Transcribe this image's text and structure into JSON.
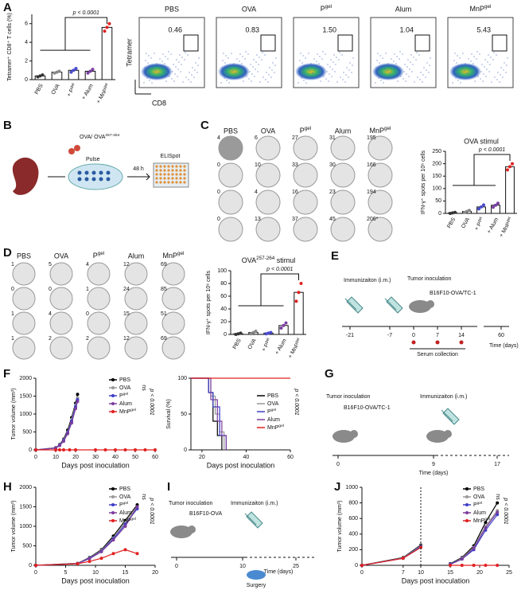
{
  "panel_labels": [
    "A",
    "B",
    "C",
    "D",
    "E",
    "F",
    "G",
    "H",
    "I",
    "J"
  ],
  "chart_data": [
    {
      "type": "bar",
      "ylabel": "Tetramer⁺ CD8⁺ T cells (%)",
      "categories": [
        "PBS",
        "OVA",
        {
          "text": "+ P",
          "sup": "gel"
        },
        "+ Alum",
        {
          "text": "+ MnP",
          "sup": "gel"
        }
      ],
      "values": [
        0.4,
        0.8,
        1.0,
        0.9,
        5.6
      ],
      "points": [
        [
          0.3,
          0.4,
          0.5
        ],
        [
          0.7,
          0.8,
          0.9
        ],
        [
          0.8,
          1.0,
          1.2
        ],
        [
          0.7,
          0.9,
          1.1
        ],
        [
          5.2,
          5.6,
          6.0
        ]
      ],
      "colors": [
        "#333333",
        "#888888",
        "#4a4ad0",
        "#7b3fa0",
        "#e02020"
      ],
      "ylim": [
        0,
        7
      ],
      "yticks": [
        0,
        2,
        4,
        6
      ],
      "annotation": "p < 0.0001"
    },
    {
      "type": "bar",
      "title": "OVA stimul",
      "ylabel": "IFN-γ⁺ spots per 10⁶ cells",
      "categories": [
        "PBS",
        "OVA",
        {
          "text": "+ P",
          "sup": "gel"
        },
        "+ Alum",
        {
          "text": "+ MnP",
          "sup": "gel"
        }
      ],
      "values": [
        2,
        8,
        26,
        33,
        188
      ],
      "points": [
        [
          0,
          2,
          4
        ],
        [
          4,
          8,
          12
        ],
        [
          18,
          26,
          34
        ],
        [
          25,
          33,
          41
        ],
        [
          175,
          188,
          200
        ]
      ],
      "colors": [
        "#333333",
        "#888888",
        "#4a4ad0",
        "#7b3fa0",
        "#e02020"
      ],
      "ylim": [
        0,
        250
      ],
      "yticks": [
        0,
        50,
        100,
        150,
        200,
        250
      ],
      "annotation": "p < 0.0001"
    },
    {
      "type": "bar",
      "title": {
        "text": "OVA",
        "sup": "257-264",
        "after": " stimul"
      },
      "ylabel": "IFN-γ⁺ spots per 10⁶ cells",
      "categories": [
        "PBS",
        "OVA",
        {
          "text": "+ P",
          "sup": "gel"
        },
        "+ Alum",
        {
          "text": "+ MnP",
          "sup": "gel"
        }
      ],
      "values": [
        1,
        3,
        2,
        14,
        66
      ],
      "points": [
        [
          0,
          1,
          2
        ],
        [
          1,
          3,
          5
        ],
        [
          1,
          2,
          3
        ],
        [
          10,
          14,
          18
        ],
        [
          52,
          66,
          80
        ]
      ],
      "colors": [
        "#333333",
        "#888888",
        "#4a4ad0",
        "#7b3fa0",
        "#e02020"
      ],
      "ylim": [
        0,
        100
      ],
      "yticks": [
        0,
        20,
        40,
        60,
        80,
        100
      ],
      "annotation": "p < 0.0001"
    },
    {
      "type": "line",
      "xlabel": "Days post inoculation",
      "ylabel": "Tumor volume (mm³)",
      "xlim": [
        0,
        60
      ],
      "xticks": [
        0,
        10,
        20,
        30,
        40,
        50,
        60
      ],
      "ylim": [
        0,
        2000
      ],
      "yticks": [
        0,
        500,
        1000,
        1500,
        2000
      ],
      "annotation": "p < 0.0001",
      "ns": "ns",
      "series": [
        {
          "name": "PBS",
          "color": "#000000",
          "x": [
            0,
            10,
            12,
            14,
            16,
            18,
            20,
            21
          ],
          "values": [
            0,
            60,
            150,
            300,
            550,
            900,
            1300,
            1550
          ]
        },
        {
          "name": "OVA",
          "color": "#999999",
          "x": [
            0,
            10,
            12,
            14,
            16,
            18,
            20,
            21
          ],
          "values": [
            0,
            55,
            140,
            280,
            500,
            850,
            1250,
            1450
          ]
        },
        {
          "name": {
            "text": "P",
            "sup": "gel"
          },
          "color": "#3d3dc8",
          "x": [
            0,
            10,
            12,
            14,
            16,
            18,
            20,
            21
          ],
          "values": [
            0,
            50,
            130,
            260,
            480,
            800,
            1200,
            1400
          ]
        },
        {
          "name": "Alum",
          "color": "#7a3d9e",
          "x": [
            0,
            10,
            12,
            14,
            16,
            18,
            20,
            21
          ],
          "values": [
            0,
            50,
            120,
            240,
            450,
            750,
            1150,
            1350
          ]
        },
        {
          "name": {
            "text": "MnP",
            "sup": "gel"
          },
          "color": "#e02020",
          "x": [
            0,
            10,
            12,
            14,
            17,
            20,
            30,
            35,
            40,
            45,
            50,
            55,
            60
          ],
          "values": [
            0,
            0,
            0,
            0,
            0,
            0,
            0,
            0,
            0,
            0,
            0,
            0,
            0
          ]
        }
      ]
    },
    {
      "type": "step",
      "xlabel": "Days post inoculation",
      "ylabel": "Survival (%)",
      "xlim": [
        15,
        60
      ],
      "xticks": [
        20,
        40,
        60
      ],
      "ylim": [
        0,
        100
      ],
      "yticks": [
        0,
        50,
        100
      ],
      "annotation": "p < 0.0001",
      "series": [
        {
          "name": "PBS",
          "color": "#000000",
          "x": [
            15,
            23,
            23,
            25,
            25,
            27,
            27,
            29,
            29
          ],
          "values": [
            100,
            100,
            80,
            80,
            40,
            40,
            20,
            20,
            0
          ]
        },
        {
          "name": "OVA",
          "color": "#999999",
          "x": [
            15,
            24,
            24,
            26,
            26,
            28,
            28,
            30,
            30
          ],
          "values": [
            100,
            100,
            75,
            75,
            50,
            50,
            25,
            25,
            0
          ]
        },
        {
          "name": {
            "text": "P",
            "sup": "gel"
          },
          "color": "#3d3dc8",
          "x": [
            15,
            23,
            23,
            25,
            25,
            28,
            28,
            31,
            31
          ],
          "values": [
            100,
            100,
            80,
            80,
            60,
            60,
            20,
            20,
            0
          ]
        },
        {
          "name": "Alum",
          "color": "#7a3d9e",
          "x": [
            15,
            24,
            24,
            27,
            27,
            29,
            29,
            31,
            31
          ],
          "values": [
            100,
            100,
            70,
            70,
            40,
            40,
            20,
            20,
            0
          ]
        },
        {
          "name": {
            "text": "MnP",
            "sup": "gel"
          },
          "color": "#e02020",
          "x": [
            15,
            60
          ],
          "values": [
            100,
            100
          ]
        }
      ]
    },
    {
      "type": "line",
      "xlabel": "Days post inoculation",
      "ylabel": "Tumor volume (mm³)",
      "xlim": [
        0,
        20
      ],
      "xticks": [
        0,
        5,
        10,
        15,
        20
      ],
      "ylim": [
        0,
        2000
      ],
      "yticks": [
        0,
        500,
        1000,
        1500,
        2000
      ],
      "annotation": "p < 0.0001",
      "ns": "ns",
      "series": [
        {
          "name": "PBS",
          "color": "#000000",
          "x": [
            0,
            7,
            9,
            11,
            13,
            15,
            17
          ],
          "values": [
            0,
            50,
            200,
            400,
            750,
            1150,
            1550
          ]
        },
        {
          "name": "OVA",
          "color": "#999999",
          "x": [
            0,
            7,
            9,
            11,
            13,
            15,
            17
          ],
          "values": [
            0,
            50,
            190,
            380,
            700,
            1100,
            1500
          ]
        },
        {
          "name": {
            "text": "P",
            "sup": "gel"
          },
          "color": "#3d3dc8",
          "x": [
            0,
            7,
            9,
            11,
            13,
            15,
            17
          ],
          "values": [
            0,
            45,
            180,
            360,
            680,
            1050,
            1450
          ]
        },
        {
          "name": "Alum",
          "color": "#7a3d9e",
          "x": [
            0,
            7,
            9,
            11,
            13,
            15,
            17
          ],
          "values": [
            0,
            45,
            170,
            350,
            650,
            1000,
            1500
          ]
        },
        {
          "name": {
            "text": "MnP",
            "sup": "gel"
          },
          "color": "#e02020",
          "x": [
            0,
            7,
            9,
            11,
            13,
            15,
            17
          ],
          "values": [
            0,
            40,
            100,
            180,
            300,
            400,
            300
          ]
        }
      ]
    },
    {
      "type": "line",
      "xlabel": "Days post inoculation",
      "ylabel": "Tumor volume (mm³)",
      "xlim": [
        0,
        25
      ],
      "xticks": [
        0,
        7,
        10,
        15,
        20,
        25
      ],
      "ylim": [
        0,
        1000
      ],
      "yticks": [
        0,
        200,
        400,
        600,
        800,
        1000
      ],
      "vline": 10,
      "annotation": "p < 0.0001",
      "ns": "ns",
      "series": [
        {
          "name": "PBS",
          "color": "#000000",
          "x": [
            0,
            7,
            10,
            12,
            15,
            17,
            19,
            21,
            23
          ],
          "values": [
            0,
            100,
            260,
            null,
            20,
            100,
            250,
            550,
            800
          ]
        },
        {
          "name": "OVA",
          "color": "#999999",
          "x": [
            0,
            7,
            10,
            12,
            15,
            17,
            19,
            21,
            23
          ],
          "values": [
            0,
            95,
            250,
            null,
            15,
            90,
            230,
            500,
            700
          ]
        },
        {
          "name": {
            "text": "P",
            "sup": "gel"
          },
          "color": "#3d3dc8",
          "x": [
            0,
            7,
            10,
            12,
            15,
            17,
            19,
            21,
            23
          ],
          "values": [
            0,
            90,
            240,
            null,
            15,
            80,
            200,
            450,
            650
          ]
        },
        {
          "name": "Alum",
          "color": "#7a3d9e",
          "x": [
            0,
            7,
            10,
            12,
            15,
            17,
            19,
            21,
            23
          ],
          "values": [
            0,
            90,
            230,
            null,
            10,
            80,
            220,
            480,
            680
          ]
        },
        {
          "name": {
            "text": "MnP",
            "sup": "gel"
          },
          "color": "#e02020",
          "x": [
            0,
            7,
            10,
            12,
            15,
            17,
            19,
            21,
            23
          ],
          "values": [
            0,
            90,
            230,
            null,
            0,
            0,
            0,
            0,
            0
          ]
        }
      ]
    }
  ],
  "flow": {
    "titles": [
      "PBS",
      "OVA",
      {
        "text": "P",
        "sup": "gel"
      },
      "Alum",
      {
        "text": "MnP",
        "sup": "gel"
      }
    ],
    "gates": [
      "0.46",
      "0.83",
      "1.50",
      "1.04",
      "5.43"
    ],
    "ylabel": "Tetramer",
    "xlabel": "CD8"
  },
  "schematic_b": {
    "antigen": {
      "text": "OVA/ OVA",
      "sup": "257-264"
    },
    "pulse": "Pulse",
    "time": "48 h",
    "assay": "ELISpot"
  },
  "elispot_c": {
    "columns": [
      "PBS",
      "OVA",
      {
        "text": "P",
        "sup": "gel"
      },
      "Alum",
      {
        "text": "MnP",
        "sup": "gel"
      }
    ],
    "counts": [
      [
        "4",
        "0",
        "0",
        "0"
      ],
      [
        "6",
        "10",
        "4",
        "13"
      ],
      [
        "27",
        "33",
        "16",
        "37"
      ],
      [
        "31",
        "30",
        "23",
        "45"
      ],
      [
        "195",
        "166",
        "194",
        "206*"
      ]
    ]
  },
  "elispot_d": {
    "columns": [
      "PBS",
      "OVA",
      {
        "text": "P",
        "sup": "gel"
      },
      "Alum",
      {
        "text": "MnP",
        "sup": "gel"
      }
    ],
    "counts": [
      [
        "1",
        "0",
        "1",
        "1"
      ],
      [
        "5",
        "0",
        "4",
        "2"
      ],
      [
        "4",
        "1",
        "0",
        "2"
      ],
      [
        "12",
        "24",
        "15",
        "12"
      ],
      [
        "69",
        "85",
        "51",
        "69"
      ]
    ]
  },
  "timeline_e": {
    "immunization": "Immunizaiton (i.m.)",
    "inoculation": "Tumor inoculation",
    "model": "B16F10-OVA/TC-1",
    "ticks": [
      "-21",
      "-7",
      "0",
      "7",
      "14",
      "60"
    ],
    "serum": "Serum collection",
    "axis": "Time (days)"
  },
  "timeline_g": {
    "inoculation": "Tumor inoculation",
    "immunization": "Immunizaiton (i.m.)",
    "model": "B16F10-OVA/TC-1",
    "ticks": [
      "0",
      "9",
      "17"
    ],
    "axis": "Time (days)"
  },
  "timeline_i": {
    "inoculation": "Tumor inoculation",
    "immunization": "Immunizaiton (i.m.)",
    "model": "B16F10-OVA",
    "ticks": [
      "0",
      "10",
      "25"
    ],
    "axis": "Time (days)",
    "surgery": "Surgery"
  }
}
